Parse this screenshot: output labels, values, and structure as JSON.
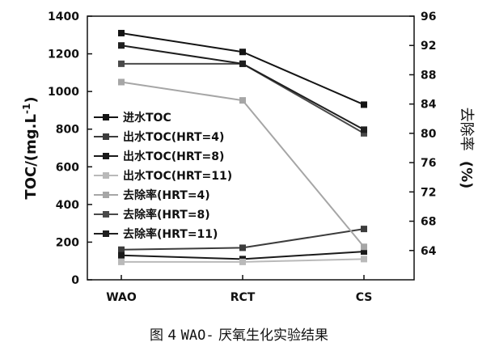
{
  "caption": {
    "figure_label": "图 4",
    "prefix": "WAO-",
    "text": "厌氧生化实验结果"
  },
  "chart_data": {
    "type": "line",
    "categories": [
      "WAO",
      "RCT",
      "CS"
    ],
    "y_left": {
      "label": "TOC/(mg.L-1)",
      "label_base": "TOC/(mg.L",
      "label_sup": "-1",
      "label_close": ")",
      "ylim": [
        0,
        1400
      ],
      "ticks": [
        0,
        200,
        400,
        600,
        800,
        1000,
        1200,
        1400
      ]
    },
    "y_right": {
      "label": "去除率 (%)",
      "label_cn": "去除率",
      "label_unit": "(%)",
      "ylim": [
        60,
        96
      ],
      "ticks": [
        64,
        68,
        72,
        76,
        80,
        84,
        88,
        92,
        96
      ]
    },
    "grid": false,
    "legend_position": "left",
    "series": [
      {
        "name": "进水TOC",
        "axis": "left",
        "color": "#141414",
        "values": [
          1310,
          1210,
          930
        ]
      },
      {
        "name": "出水TOC(HRT=4)",
        "axis": "left",
        "color": "#3c3c3c",
        "values": [
          160,
          170,
          270
        ]
      },
      {
        "name": "出水TOC(HRT=8)",
        "axis": "left",
        "color": "#1a1a1a",
        "values": [
          130,
          110,
          150
        ]
      },
      {
        "name": "出水TOC(HRT=11)",
        "axis": "left",
        "color": "#b9b9b9",
        "values": [
          95,
          95,
          110
        ]
      },
      {
        "name": "去除率(HRT=4)",
        "axis": "right",
        "color": "#a6a6a6",
        "values": [
          87.0,
          84.5,
          64.5
        ]
      },
      {
        "name": "去除率(HRT=8)",
        "axis": "right",
        "color": "#4a4a4a",
        "values": [
          89.5,
          89.5,
          80.0
        ]
      },
      {
        "name": "去除率(HRT=11)",
        "axis": "right",
        "color": "#1f1f1f",
        "values": [
          92.0,
          89.5,
          80.5
        ]
      }
    ]
  }
}
